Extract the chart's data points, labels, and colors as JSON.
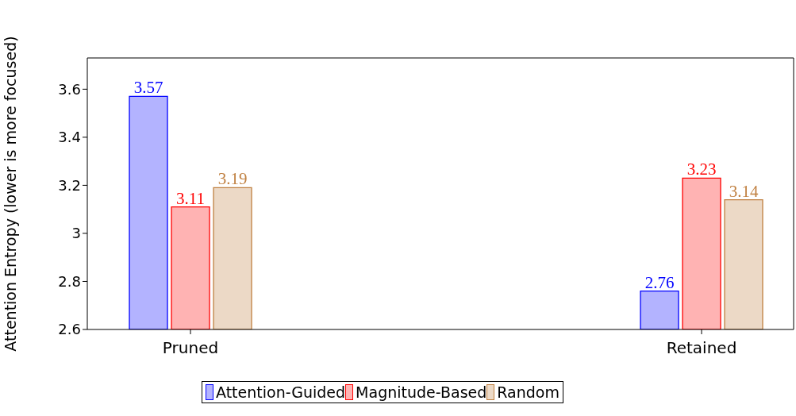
{
  "chart_data": {
    "type": "bar",
    "ylabel": "Attention Entropy (lower is more focused)",
    "categories": [
      "Pruned",
      "Retained"
    ],
    "series": [
      {
        "name": "Attention-Guided",
        "color": "#b3b3ff",
        "values": [
          3.57,
          2.76
        ]
      },
      {
        "name": "Magnitude-Based",
        "color": "#ffb3b3",
        "values": [
          3.11,
          3.23
        ]
      },
      {
        "name": "Random",
        "color": "#ecd9c6",
        "values": [
          3.19,
          3.14
        ]
      }
    ],
    "ylim": [
      2.6,
      3.73
    ],
    "yticks": [
      {
        "value": 2.6,
        "label": "2.6"
      },
      {
        "value": 2.8,
        "label": "2.8"
      },
      3,
      {
        "value": 3.2,
        "label": "3.2"
      },
      {
        "value": 3.4,
        "label": "3.4"
      },
      {
        "value": 3.6,
        "label": "3.6"
      }
    ],
    "data_labels": true,
    "grid": false,
    "legend": "bottom"
  }
}
